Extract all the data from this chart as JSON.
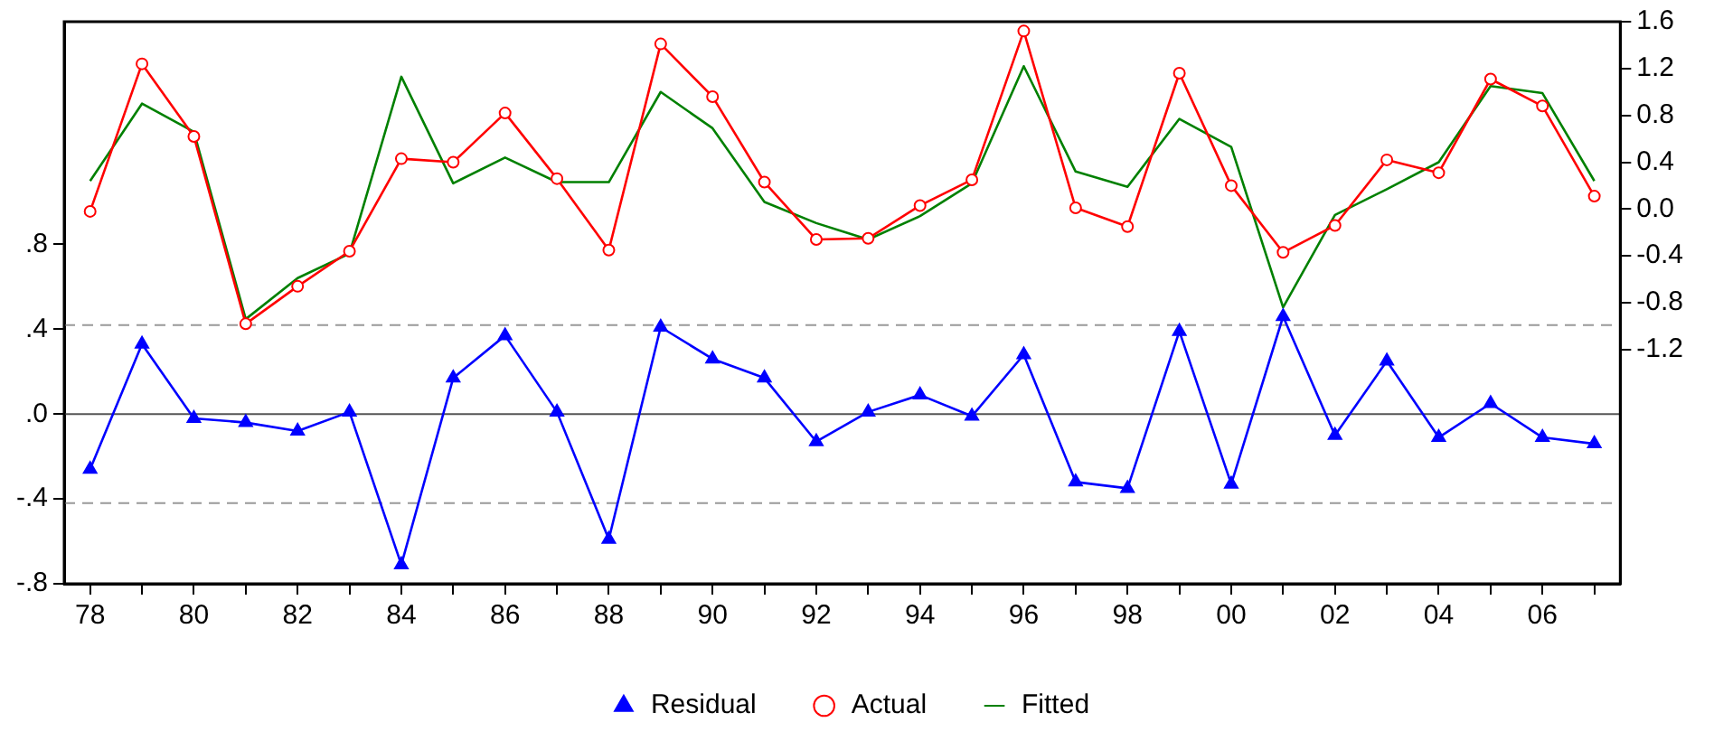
{
  "chart_data": {
    "type": "line",
    "x": [
      1978,
      1979,
      1980,
      1981,
      1982,
      1983,
      1984,
      1985,
      1986,
      1987,
      1988,
      1989,
      1990,
      1991,
      1992,
      1993,
      1994,
      1995,
      1996,
      1997,
      1998,
      1999,
      2000,
      2001,
      2002,
      2003,
      2004,
      2005,
      2006,
      2007
    ],
    "series": [
      {
        "name": "Residual",
        "color": "#0000ff",
        "axis": "y",
        "marker": "triangle",
        "values": [
          -0.26,
          0.33,
          -0.02,
          -0.04,
          -0.08,
          0.01,
          -0.71,
          0.17,
          0.37,
          0.01,
          -0.59,
          0.41,
          0.26,
          0.17,
          -0.13,
          0.01,
          0.09,
          -0.01,
          0.28,
          -0.32,
          -0.35,
          0.39,
          -0.33,
          0.46,
          -0.1,
          0.25,
          -0.11,
          0.05,
          -0.11,
          -0.14
        ]
      },
      {
        "name": "Actual",
        "color": "#ff0000",
        "axis": "y2",
        "marker": "circle",
        "values": [
          -0.02,
          1.24,
          0.62,
          -0.98,
          -0.66,
          -0.36,
          0.43,
          0.4,
          0.82,
          0.26,
          -0.35,
          1.41,
          0.96,
          0.23,
          -0.26,
          -0.25,
          0.03,
          0.25,
          1.52,
          0.01,
          -0.15,
          1.16,
          0.2,
          -0.37,
          -0.14,
          0.42,
          0.31,
          1.11,
          0.88,
          0.11
        ]
      },
      {
        "name": "Fitted",
        "color": "#008000",
        "axis": "y2",
        "marker": "none",
        "values": [
          0.24,
          0.9,
          0.66,
          -0.94,
          -0.59,
          -0.38,
          1.13,
          0.22,
          0.44,
          0.23,
          0.23,
          1.0,
          0.69,
          0.06,
          -0.12,
          -0.26,
          -0.06,
          0.22,
          1.22,
          0.32,
          0.19,
          0.77,
          0.53,
          -0.84,
          -0.05,
          0.17,
          0.4,
          1.05,
          0.99,
          0.24
        ]
      }
    ],
    "xlim": [
      1977.5,
      2007.5
    ],
    "xticks": [
      {
        "value": 1978,
        "label": "78"
      },
      {
        "value": 1979,
        "label": null
      },
      {
        "value": 1980,
        "label": "80"
      },
      {
        "value": 1981,
        "label": null
      },
      {
        "value": 1982,
        "label": "82"
      },
      {
        "value": 1983,
        "label": null
      },
      {
        "value": 1984,
        "label": "84"
      },
      {
        "value": 1985,
        "label": null
      },
      {
        "value": 1986,
        "label": "86"
      },
      {
        "value": 1987,
        "label": null
      },
      {
        "value": 1988,
        "label": "88"
      },
      {
        "value": 1989,
        "label": null
      },
      {
        "value": 1990,
        "label": "90"
      },
      {
        "value": 1991,
        "label": null
      },
      {
        "value": 1992,
        "label": "92"
      },
      {
        "value": 1993,
        "label": null
      },
      {
        "value": 1994,
        "label": "94"
      },
      {
        "value": 1995,
        "label": null
      },
      {
        "value": 1996,
        "label": "96"
      },
      {
        "value": 1997,
        "label": null
      },
      {
        "value": 1998,
        "label": "98"
      },
      {
        "value": 1999,
        "label": null
      },
      {
        "value": 2000,
        "label": "00"
      },
      {
        "value": 2001,
        "label": null
      },
      {
        "value": 2002,
        "label": "02"
      },
      {
        "value": 2003,
        "label": null
      },
      {
        "value": 2004,
        "label": "04"
      },
      {
        "value": 2005,
        "label": null
      },
      {
        "value": 2006,
        "label": "06"
      },
      {
        "value": 2007,
        "label": null
      }
    ],
    "ylim": [
      -0.8,
      1.85
    ],
    "yticks": [
      {
        "value": -0.8,
        "label": "-.8"
      },
      {
        "value": -0.4,
        "label": "-.4"
      },
      {
        "value": 0,
        "label": ".0"
      },
      {
        "value": 0.4,
        "label": ".4"
      },
      {
        "value": 0.8,
        "label": ".8"
      }
    ],
    "y2lim": [
      -3.2,
      1.6
    ],
    "y2ticks": [
      -1.2,
      -0.8,
      -0.4,
      {
        "value": 0,
        "label": "0.0"
      },
      0.4,
      0.8,
      1.2,
      1.6
    ],
    "ref_lines": [
      {
        "axis": "y",
        "value": 0,
        "color": "#555555",
        "line_style": "solid"
      },
      {
        "axis": "y",
        "value": 0.42,
        "color": "#999999",
        "line_style": "dashed"
      },
      {
        "axis": "y",
        "value": -0.42,
        "color": "#999999",
        "line_style": "dashed"
      }
    ],
    "grid": false,
    "legend": "bottom"
  }
}
